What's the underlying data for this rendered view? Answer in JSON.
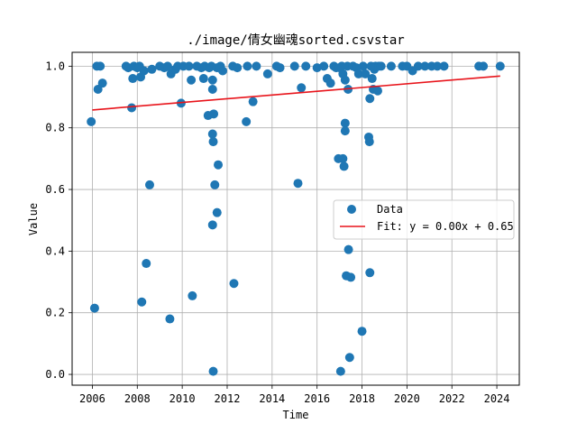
{
  "chart_data": {
    "type": "scatter",
    "title": "./image/倩女幽魂sorted.csvstar",
    "xlabel": "Time",
    "ylabel": "Value",
    "xlim": [
      2005.1,
      2025.0
    ],
    "ylim": [
      -0.035,
      1.045
    ],
    "x_ticks": [
      2006,
      2008,
      2010,
      2012,
      2014,
      2016,
      2018,
      2020,
      2022,
      2024
    ],
    "y_ticks": [
      0.0,
      0.2,
      0.4,
      0.6,
      0.8,
      1.0
    ],
    "y_tick_labels": [
      "0.0",
      "0.2",
      "0.4",
      "0.6",
      "0.8",
      "1.0"
    ],
    "grid": true,
    "legend_position": "center-right",
    "colors": {
      "data": "#1f77b4",
      "fit": "#e8141b"
    },
    "series": [
      {
        "name": "Data",
        "kind": "scatter",
        "points": [
          [
            2005.95,
            0.82
          ],
          [
            2006.1,
            0.215
          ],
          [
            2006.25,
            0.925
          ],
          [
            2006.2,
            1.0
          ],
          [
            2006.35,
            1.0
          ],
          [
            2006.45,
            0.945
          ],
          [
            2007.5,
            1.0
          ],
          [
            2007.6,
            0.995
          ],
          [
            2007.75,
            0.865
          ],
          [
            2007.8,
            0.96
          ],
          [
            2007.85,
            1.0
          ],
          [
            2008.0,
            0.995
          ],
          [
            2008.1,
            1.0
          ],
          [
            2008.15,
            0.965
          ],
          [
            2008.2,
            0.235
          ],
          [
            2008.3,
            0.985
          ],
          [
            2008.4,
            0.36
          ],
          [
            2008.55,
            0.615
          ],
          [
            2008.65,
            0.99
          ],
          [
            2009.0,
            1.0
          ],
          [
            2009.2,
            0.995
          ],
          [
            2009.35,
            1.0
          ],
          [
            2009.45,
            0.18
          ],
          [
            2009.5,
            0.975
          ],
          [
            2009.7,
            0.99
          ],
          [
            2009.8,
            1.0
          ],
          [
            2009.95,
            0.88
          ],
          [
            2010.05,
            1.0
          ],
          [
            2010.3,
            1.0
          ],
          [
            2010.4,
            0.955
          ],
          [
            2010.45,
            0.255
          ],
          [
            2010.65,
            1.0
          ],
          [
            2010.85,
            0.995
          ],
          [
            2010.95,
            0.96
          ],
          [
            2011.0,
            1.0
          ],
          [
            2011.15,
            0.84
          ],
          [
            2011.2,
            0.995
          ],
          [
            2011.3,
            1.0
          ],
          [
            2011.35,
            0.955
          ],
          [
            2011.35,
            0.925
          ],
          [
            2011.35,
            0.78
          ],
          [
            2011.38,
            0.755
          ],
          [
            2011.35,
            0.485
          ],
          [
            2011.38,
            0.01
          ],
          [
            2011.4,
            0.845
          ],
          [
            2011.45,
            0.615
          ],
          [
            2011.55,
            0.525
          ],
          [
            2011.6,
            0.68
          ],
          [
            2011.55,
            0.995
          ],
          [
            2011.7,
            1.0
          ],
          [
            2011.8,
            0.985
          ],
          [
            2012.25,
            1.0
          ],
          [
            2012.3,
            0.295
          ],
          [
            2012.45,
            0.995
          ],
          [
            2012.85,
            0.82
          ],
          [
            2012.9,
            1.0
          ],
          [
            2013.15,
            0.885
          ],
          [
            2013.3,
            1.0
          ],
          [
            2013.8,
            0.975
          ],
          [
            2014.2,
            1.0
          ],
          [
            2014.35,
            0.995
          ],
          [
            2015.0,
            1.0
          ],
          [
            2015.15,
            0.62
          ],
          [
            2015.3,
            0.93
          ],
          [
            2015.5,
            1.0
          ],
          [
            2016.0,
            0.995
          ],
          [
            2016.3,
            1.0
          ],
          [
            2016.45,
            0.96
          ],
          [
            2016.6,
            0.945
          ],
          [
            2016.75,
            1.0
          ],
          [
            2016.85,
            0.995
          ],
          [
            2016.95,
            0.7
          ],
          [
            2017.0,
            0.995
          ],
          [
            2017.05,
            0.01
          ],
          [
            2017.1,
            1.0
          ],
          [
            2017.15,
            0.975
          ],
          [
            2017.15,
            0.7
          ],
          [
            2017.2,
            0.675
          ],
          [
            2017.25,
            0.955
          ],
          [
            2017.25,
            0.815
          ],
          [
            2017.25,
            0.79
          ],
          [
            2017.3,
            0.32
          ],
          [
            2017.35,
            1.0
          ],
          [
            2017.38,
            0.925
          ],
          [
            2017.4,
            0.405
          ],
          [
            2017.45,
            0.055
          ],
          [
            2017.5,
            0.315
          ],
          [
            2017.6,
            1.0
          ],
          [
            2017.75,
            0.995
          ],
          [
            2017.85,
            0.975
          ],
          [
            2018.0,
            0.14
          ],
          [
            2018.05,
            1.0
          ],
          [
            2018.15,
            0.975
          ],
          [
            2018.3,
            0.77
          ],
          [
            2018.33,
            0.755
          ],
          [
            2018.35,
            0.895
          ],
          [
            2018.35,
            0.33
          ],
          [
            2018.4,
            1.0
          ],
          [
            2018.45,
            0.96
          ],
          [
            2018.5,
            0.925
          ],
          [
            2018.55,
            0.99
          ],
          [
            2018.6,
            1.0
          ],
          [
            2018.7,
            0.92
          ],
          [
            2018.75,
            1.0
          ],
          [
            2018.85,
            1.0
          ],
          [
            2019.3,
            1.0
          ],
          [
            2019.8,
            1.0
          ],
          [
            2020.0,
            1.0
          ],
          [
            2020.25,
            0.985
          ],
          [
            2020.5,
            1.0
          ],
          [
            2020.8,
            1.0
          ],
          [
            2021.1,
            1.0
          ],
          [
            2021.35,
            1.0
          ],
          [
            2021.65,
            1.0
          ],
          [
            2023.2,
            1.0
          ],
          [
            2023.4,
            1.0
          ],
          [
            2024.15,
            1.0
          ]
        ]
      },
      {
        "name": "Fit: y = 0.00x + 0.65",
        "kind": "line",
        "x": [
          2006.0,
          2024.15
        ],
        "y": [
          0.858,
          0.968
        ]
      }
    ]
  }
}
